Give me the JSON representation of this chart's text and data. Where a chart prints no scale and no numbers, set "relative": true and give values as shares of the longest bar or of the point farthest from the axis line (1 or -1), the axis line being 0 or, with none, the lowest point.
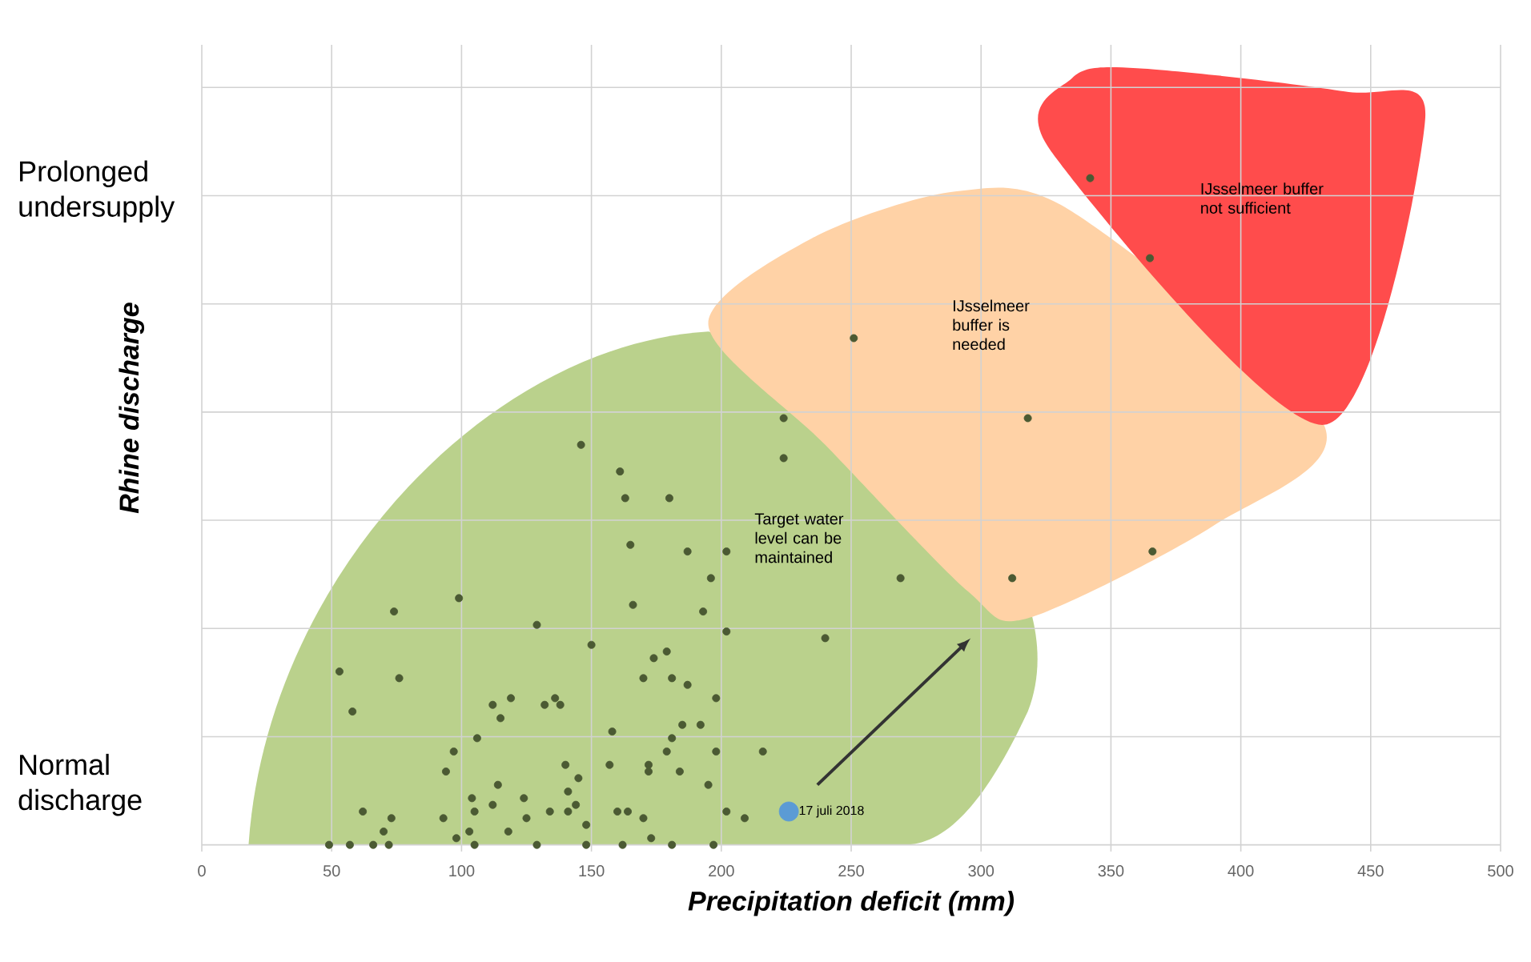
{
  "chart_data": {
    "type": "scatter",
    "xlabel": "Precipitation deficit (mm)",
    "ylabel": "Rhine discharge",
    "relative": true,
    "xlim": [
      0,
      500
    ],
    "xticks": [
      0,
      50,
      100,
      150,
      200,
      250,
      300,
      350,
      400,
      450,
      500
    ],
    "grid": true,
    "tick_labels": "x",
    "marker": "circle",
    "series": [
      {
        "color": "#4b5a33",
        "x": [
          146,
          161,
          163,
          180,
          165,
          187,
          202,
          196,
          99,
          74,
          166,
          193,
          129,
          202,
          240,
          150,
          174,
          179,
          53,
          76,
          170,
          181,
          187,
          198,
          58,
          112,
          119,
          115,
          132,
          136,
          138,
          185,
          192,
          158,
          106,
          97,
          181,
          179,
          198,
          216,
          94,
          140,
          157,
          172,
          172,
          184,
          145,
          195,
          114,
          124,
          141,
          104,
          105,
          112,
          62,
          73,
          70,
          93,
          125,
          134,
          141,
          144,
          160,
          164,
          170,
          148,
          202,
          209,
          103,
          98,
          105,
          118,
          129,
          148,
          162,
          173,
          181,
          197,
          49,
          57,
          66,
          72,
          342,
          365,
          251,
          318,
          224,
          224,
          366,
          312,
          269
        ],
        "values": [
          0.6,
          0.56,
          0.52,
          0.52,
          0.45,
          0.44,
          0.44,
          0.4,
          0.37,
          0.35,
          0.36,
          0.35,
          0.33,
          0.32,
          0.31,
          0.3,
          0.28,
          0.29,
          0.26,
          0.25,
          0.25,
          0.25,
          0.24,
          0.22,
          0.2,
          0.21,
          0.22,
          0.19,
          0.21,
          0.22,
          0.21,
          0.18,
          0.18,
          0.17,
          0.16,
          0.14,
          0.16,
          0.14,
          0.14,
          0.14,
          0.11,
          0.12,
          0.12,
          0.12,
          0.11,
          0.11,
          0.1,
          0.09,
          0.09,
          0.07,
          0.08,
          0.07,
          0.05,
          0.06,
          0.05,
          0.04,
          0.02,
          0.04,
          0.04,
          0.05,
          0.05,
          0.06,
          0.05,
          0.05,
          0.04,
          0.03,
          0.05,
          0.04,
          0.02,
          0.01,
          0,
          0.02,
          0,
          0,
          0,
          0.01,
          0,
          0,
          0,
          0,
          0,
          0,
          1,
          0.88,
          0.76,
          0.64,
          0.64,
          0.58,
          0.44,
          0.4,
          0.4
        ]
      },
      {
        "color": "#5b9bd5",
        "x": [
          226
        ],
        "values": [
          0.05
        ]
      }
    ],
    "annotations": [
      "Prolonged undersupply",
      "Normal discharge",
      "IJsselmeer buffer not sufficient",
      "IJsselmeer buffer is needed",
      "Target water level can be maintained",
      {
        "text": "17 juli 2018",
        "x": 226,
        "y": 0.05
      }
    ]
  }
}
